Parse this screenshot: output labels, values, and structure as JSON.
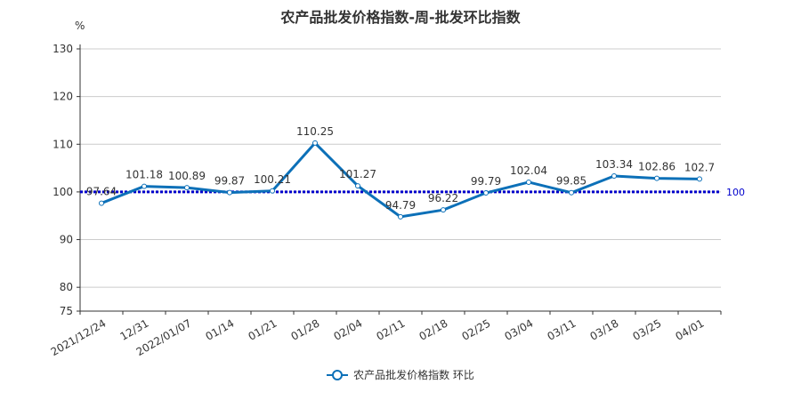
{
  "chart_data": {
    "type": "line",
    "title": "农产品批发价格指数-周-批发环比指数",
    "ylabel": "%",
    "categories": [
      "2021/12/24",
      "12/31",
      "2022/01/07",
      "01/14",
      "01/21",
      "01/28",
      "02/04",
      "02/11",
      "02/18",
      "02/25",
      "03/04",
      "03/11",
      "03/18",
      "03/25",
      "04/01"
    ],
    "series": [
      {
        "name": "农产品批发价格指数  环比",
        "values": [
          97.64,
          101.18,
          100.89,
          99.87,
          100.21,
          110.25,
          101.27,
          94.79,
          96.22,
          99.79,
          102.04,
          99.85,
          103.34,
          102.86,
          102.7
        ]
      }
    ],
    "ylim": [
      75,
      130
    ],
    "yticks": [
      75,
      80,
      90,
      100,
      110,
      120,
      130
    ],
    "reference_line": {
      "value": 100,
      "label": "100"
    },
    "grid": true,
    "legend_position": "bottom",
    "colors": {
      "series": "#0c70b8",
      "reference": "#0000cc",
      "grid": "#cccccc",
      "axis": "#333333"
    }
  }
}
